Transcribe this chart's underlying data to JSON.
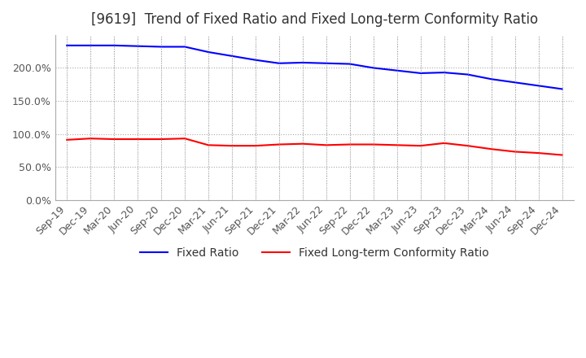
{
  "title": "[9619]  Trend of Fixed Ratio and Fixed Long-term Conformity Ratio",
  "x_labels": [
    "Sep-19",
    "Dec-19",
    "Mar-20",
    "Jun-20",
    "Sep-20",
    "Dec-20",
    "Mar-21",
    "Jun-21",
    "Sep-21",
    "Dec-21",
    "Mar-22",
    "Jun-22",
    "Sep-22",
    "Dec-22",
    "Mar-23",
    "Jun-23",
    "Sep-23",
    "Dec-23",
    "Mar-24",
    "Jun-24",
    "Sep-24",
    "Dec-24"
  ],
  "fixed_ratio": [
    234,
    234,
    234,
    233,
    232,
    232,
    224,
    218,
    212,
    207,
    208,
    207,
    206,
    200,
    196,
    192,
    193,
    190,
    183,
    178,
    173,
    168
  ],
  "fixed_lt_ratio": [
    91,
    93,
    92,
    92,
    92,
    93,
    83,
    82,
    82,
    84,
    85,
    83,
    84,
    84,
    83,
    82,
    86,
    82,
    77,
    73,
    71,
    68
  ],
  "ylim": [
    0,
    250
  ],
  "y_ticks": [
    0,
    50,
    100,
    150,
    200
  ],
  "fixed_ratio_color": "#0000ff",
  "fixed_lt_ratio_color": "#ff0000",
  "background_color": "#ffffff",
  "grid_color": "#aaaaaa",
  "title_fontsize": 12,
  "legend_fontsize": 10,
  "tick_fontsize": 9
}
